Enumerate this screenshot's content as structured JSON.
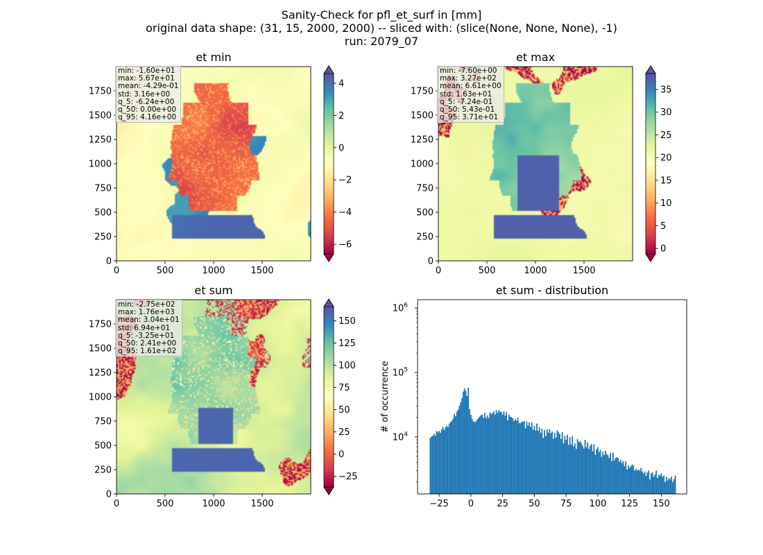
{
  "figure": {
    "title_lines": [
      "Sanity-Check for pfl_et_surf in [mm]",
      "original data shape: (31, 15, 2000, 2000) -- sliced with: (slice(None, None, None), -1)",
      "run: 2079_07"
    ]
  },
  "chart_data": [
    {
      "type": "heatmap",
      "title": "et min",
      "colormap": "Spectral",
      "xticks": [
        "0",
        "500",
        "1000",
        "1500"
      ],
      "yticks": [
        "0",
        "250",
        "500",
        "750",
        "1000",
        "1250",
        "1500",
        "1750"
      ],
      "colorbar": {
        "min": -6.6,
        "max": 4.6,
        "extend": "both",
        "ticks": [
          "4",
          "2",
          "0",
          "−2",
          "−4",
          "−6"
        ],
        "tick_values": [
          4,
          2,
          0,
          -2,
          -4,
          -6
        ]
      },
      "stats": [
        "min: -1.60e+01",
        "max: 5.67e+01",
        "mean: -4.29e-01",
        "std: 3.16e+00",
        "q_5: -6.24e+00",
        "q_50: 0.00e+00",
        "q_95: 4.16e+00"
      ]
    },
    {
      "type": "heatmap",
      "title": "et max",
      "colormap": "Spectral",
      "xticks": [
        "0",
        "500",
        "1000",
        "1500"
      ],
      "yticks": [
        "0",
        "250",
        "500",
        "750",
        "1000",
        "1250",
        "1500",
        "1750"
      ],
      "colorbar": {
        "min": -1.2,
        "max": 38.5,
        "extend": "both",
        "ticks": [
          "35",
          "30",
          "25",
          "20",
          "15",
          "10",
          "5",
          "0"
        ],
        "tick_values": [
          35,
          30,
          25,
          20,
          15,
          10,
          5,
          0
        ]
      },
      "stats": [
        "min: -7.60e+00",
        "max: 3.27e+02",
        "mean: 6.61e+00",
        "std: 1.63e+01",
        "q_5: -7.24e-01",
        "q_50: 5.43e-01",
        "q_95: 3.71e+01"
      ]
    },
    {
      "type": "heatmap",
      "title": "et sum",
      "colormap": "Spectral",
      "xticks": [
        "0",
        "500",
        "1000",
        "1500"
      ],
      "yticks": [
        "0",
        "250",
        "500",
        "750",
        "1000",
        "1250",
        "1500",
        "1750"
      ],
      "colorbar": {
        "min": -37,
        "max": 166,
        "extend": "both",
        "ticks": [
          "150",
          "125",
          "100",
          "75",
          "50",
          "25",
          "0",
          "−25"
        ],
        "tick_values": [
          150,
          125,
          100,
          75,
          50,
          25,
          0,
          -25
        ]
      },
      "stats": [
        "min: -2.75e+02",
        "max: 1.76e+03",
        "mean: 3.04e+01",
        "std: 6.94e+01",
        "q_5: -3.25e+01",
        "q_50: 2.41e+00",
        "q_95: 1.61e+02"
      ]
    },
    {
      "type": "bar",
      "title": "et sum - distribution",
      "ylabel": "# of occurrence",
      "yscale": "log",
      "color": "#1f77b4",
      "xlim": [
        -42,
        170
      ],
      "ylim": [
        1300,
        1350000
      ],
      "xticks": [
        "−25",
        "0",
        "25",
        "50",
        "75",
        "100",
        "125",
        "150"
      ],
      "xtick_values": [
        -25,
        0,
        25,
        50,
        75,
        100,
        125,
        150
      ],
      "yticks": [
        "10",
        "10",
        "10"
      ],
      "ytick_exponents": [
        "4",
        "5",
        "6"
      ],
      "ytick_values": [
        10000,
        100000,
        1000000
      ],
      "bin_start": -32.5,
      "bin_width": 1.0,
      "counts": [
        9600,
        10100,
        10400,
        11200,
        10400,
        12300,
        11800,
        12400,
        11600,
        13200,
        14300,
        12800,
        14100,
        15000,
        14200,
        16000,
        17000,
        17800,
        19300,
        22700,
        21000,
        24600,
        26600,
        30600,
        34200,
        40100,
        50600,
        56500,
        51900,
        43000,
        58000,
        27000,
        22000,
        19000,
        17400,
        16900,
        17400,
        18600,
        19700,
        20800,
        21800,
        22300,
        19800,
        23500,
        19600,
        21600,
        19600,
        24000,
        22800,
        23300,
        24900,
        22200,
        26200,
        23600,
        25800,
        24500,
        24300,
        22200,
        25000,
        21300,
        24200,
        18000,
        22200,
        20500,
        20300,
        19400,
        17600,
        19000,
        17800,
        19900,
        16400,
        16300,
        17100,
        17200,
        17800,
        13600,
        17300,
        15000,
        16800,
        14300,
        16900,
        12900,
        14700,
        12500,
        16100,
        12400,
        14200,
        11600,
        13300,
        9600,
        12800,
        10300,
        13100,
        11600,
        13200,
        11300,
        12100,
        9300,
        11600,
        9700,
        12700,
        11800,
        11100,
        9300,
        11800,
        7900,
        10400,
        9000,
        10800,
        7500,
        9900,
        7600,
        10200,
        7100,
        7900,
        6500,
        9300,
        8300,
        8600,
        8000,
        7300,
        6600,
        9000,
        6900,
        8200,
        6500,
        7300,
        7800,
        6000,
        7700,
        5300,
        6400,
        6900,
        5800,
        6300,
        4900,
        5900,
        5200,
        6100,
        5400,
        5200,
        4700,
        5600,
        4200,
        5700,
        4300,
        4700,
        4800,
        4700,
        4100,
        4400,
        3900,
        4200,
        3500,
        4200,
        3100,
        3600,
        3300,
        3500,
        3700,
        3600,
        3000,
        3200,
        3000,
        3100,
        3000,
        3300,
        2900,
        2700,
        2900,
        2500,
        2800,
        3000,
        2200,
        2700,
        2800,
        2400,
        2600,
        3000,
        2300,
        2600,
        2500,
        2700,
        2400,
        2500,
        2000,
        2400,
        2100,
        2300,
        2200,
        2400,
        2000,
        2200,
        2500
      ]
    }
  ]
}
